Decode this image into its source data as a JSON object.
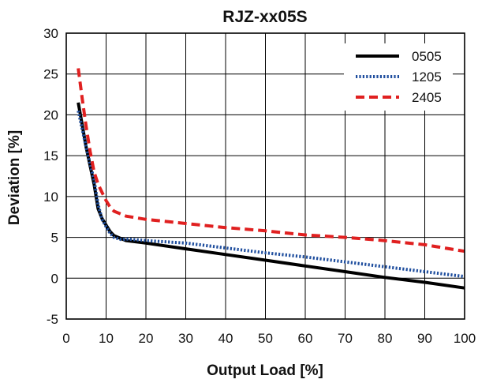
{
  "chart_data": {
    "type": "line",
    "title": "RJZ-xx05S",
    "xlabel": "Output Load [%]",
    "ylabel": "Deviation [%]",
    "xlim": [
      0,
      100
    ],
    "ylim": [
      -5,
      30
    ],
    "xticks": [
      "0",
      "10",
      "20",
      "30",
      "40",
      "50",
      "60",
      "70",
      "80",
      "90",
      "100"
    ],
    "yticks": [
      "-5",
      "0",
      "5",
      "10",
      "15",
      "20",
      "25",
      "30"
    ],
    "grid": true,
    "legend_position": "top-right",
    "series": [
      {
        "name": "0505",
        "color": "#000000",
        "dash": "solid",
        "points": [
          [
            3,
            21.5
          ],
          [
            5,
            16
          ],
          [
            7,
            11.5
          ],
          [
            8,
            8.5
          ],
          [
            9,
            7.3
          ],
          [
            10,
            6.5
          ],
          [
            11,
            5.7
          ],
          [
            12,
            5.2
          ],
          [
            14,
            4.8
          ],
          [
            15,
            4.6
          ],
          [
            20,
            4.3
          ],
          [
            30,
            3.6
          ],
          [
            40,
            2.9
          ],
          [
            50,
            2.2
          ],
          [
            60,
            1.5
          ],
          [
            70,
            0.8
          ],
          [
            80,
            0.1
          ],
          [
            90,
            -0.5
          ],
          [
            100,
            -1.2
          ]
        ]
      },
      {
        "name": "1205",
        "color": "#1f4e9e",
        "dash": "dotted",
        "points": [
          [
            3,
            20.5
          ],
          [
            5,
            16
          ],
          [
            7,
            12
          ],
          [
            8,
            9
          ],
          [
            9,
            7.2
          ],
          [
            10,
            6.3
          ],
          [
            11,
            5.5
          ],
          [
            12,
            5.0
          ],
          [
            14,
            4.7
          ],
          [
            15,
            4.8
          ],
          [
            20,
            4.6
          ],
          [
            30,
            4.3
          ],
          [
            40,
            3.7
          ],
          [
            50,
            3.1
          ],
          [
            60,
            2.6
          ],
          [
            70,
            2.0
          ],
          [
            80,
            1.4
          ],
          [
            90,
            0.8
          ],
          [
            100,
            0.2
          ]
        ]
      },
      {
        "name": "2405",
        "color": "#e02020",
        "dash": "dashed",
        "points": [
          [
            3,
            25.7
          ],
          [
            4,
            22
          ],
          [
            5,
            18.5
          ],
          [
            6,
            15.5
          ],
          [
            7,
            13
          ],
          [
            8,
            11.5
          ],
          [
            9,
            10.5
          ],
          [
            10,
            9.5
          ],
          [
            11,
            8.7
          ],
          [
            12,
            8.2
          ],
          [
            14,
            7.8
          ],
          [
            15,
            7.6
          ],
          [
            20,
            7.2
          ],
          [
            30,
            6.7
          ],
          [
            40,
            6.2
          ],
          [
            50,
            5.8
          ],
          [
            60,
            5.3
          ],
          [
            70,
            5.0
          ],
          [
            80,
            4.6
          ],
          [
            90,
            4.1
          ],
          [
            100,
            3.3
          ]
        ]
      }
    ]
  }
}
